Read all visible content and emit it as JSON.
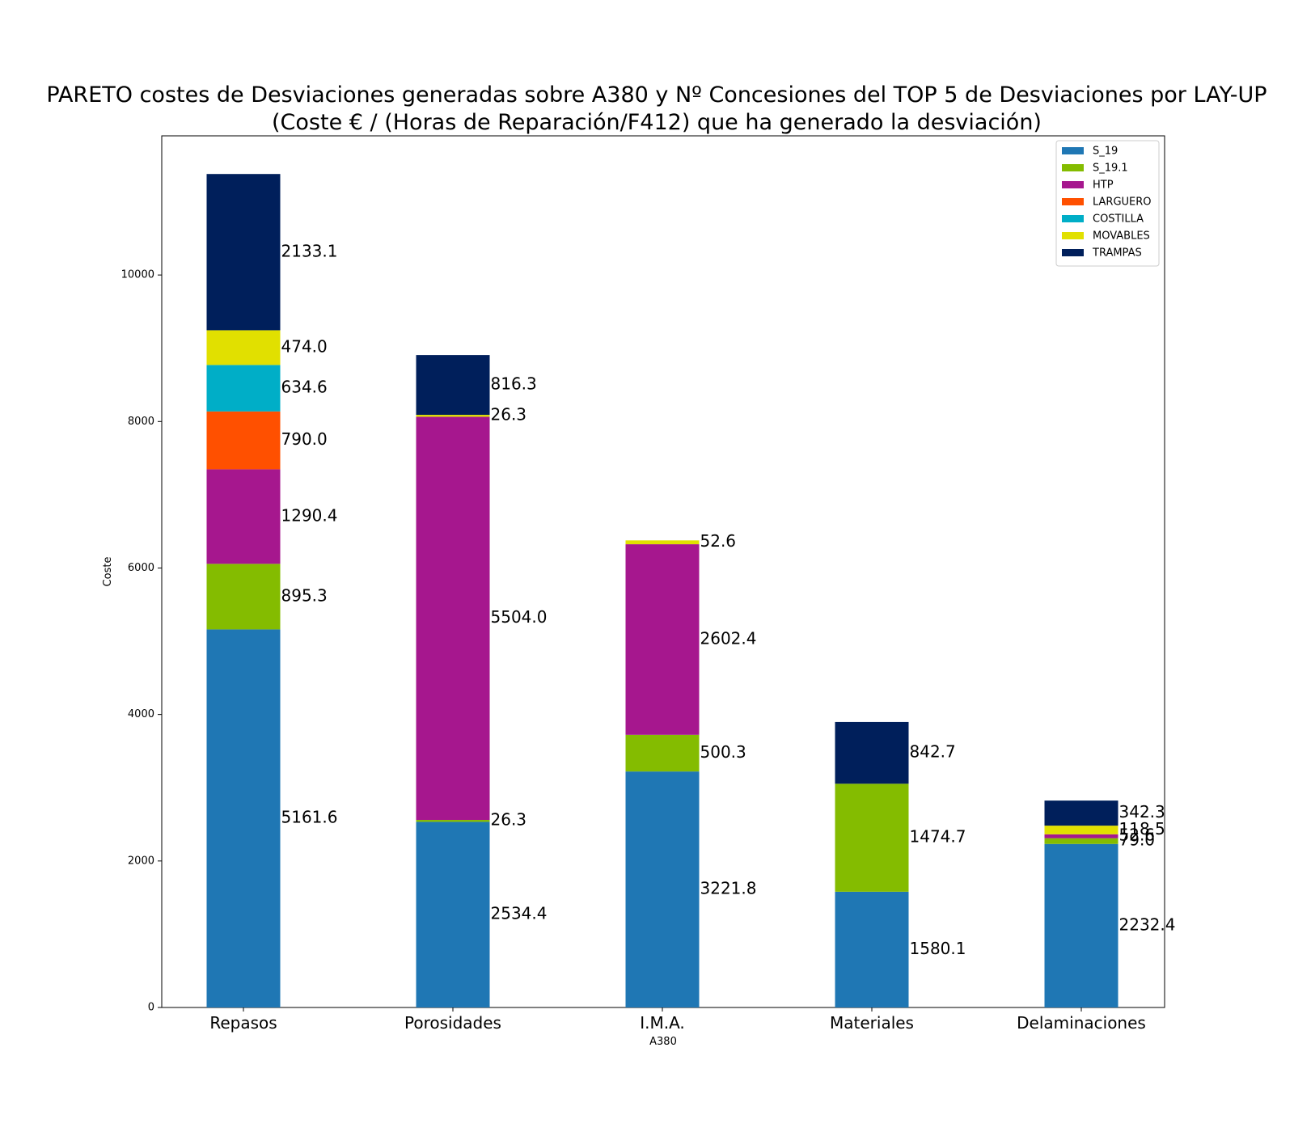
{
  "chart_data": {
    "type": "bar",
    "stacked": true,
    "title_lines": [
      "PARETO costes de Desviaciones  generadas sobre A380 y Nº Concesiones del TOP 5 de Desviaciones por LAY-UP",
      "(Coste € / (Horas de Reparación/F412) que ha generado la desviación)"
    ],
    "xlabel": "A380",
    "ylabel": "Coste",
    "ylim": [
      0,
      11900
    ],
    "yticks": [
      0,
      2000,
      4000,
      6000,
      8000,
      10000
    ],
    "categories": [
      "Repasos",
      "Porosidades",
      "I.M.A.",
      "Materiales",
      "Delaminaciones"
    ],
    "series": [
      {
        "name": "S_19",
        "color": "#1f77b4",
        "values": [
          5161.6,
          2534.4,
          3221.8,
          1580.1,
          2232.4
        ]
      },
      {
        "name": "S_19.1",
        "color": "#84bc00",
        "values": [
          895.3,
          26.3,
          500.3,
          1474.7,
          79.0
        ]
      },
      {
        "name": "HTP",
        "color": "#a6178e",
        "values": [
          1290.4,
          5504.0,
          2602.4,
          0,
          52.6
        ]
      },
      {
        "name": "LARGUERO",
        "color": "#ff5000",
        "values": [
          790.0,
          0,
          0,
          0,
          0
        ]
      },
      {
        "name": "COSTILLA",
        "color": "#00aec7",
        "values": [
          634.6,
          0,
          0,
          0,
          0
        ]
      },
      {
        "name": "MOVABLES",
        "color": "#e1e000",
        "values": [
          474.0,
          26.3,
          52.6,
          0,
          118.5
        ]
      },
      {
        "name": "TRAMPAS",
        "color": "#001f5b",
        "values": [
          2133.1,
          816.3,
          0,
          842.7,
          342.3
        ]
      }
    ],
    "value_labels": [
      [
        "5161.6",
        "895.3",
        "1290.4",
        "790.0",
        "634.6",
        "474.0",
        "2133.1"
      ],
      [
        "2534.4",
        "26.3",
        "5504.0",
        "",
        "",
        "26.3",
        "816.3"
      ],
      [
        "3221.8",
        "500.3",
        "2602.4",
        "",
        "",
        "52.6",
        ""
      ],
      [
        "1580.1",
        "1474.7",
        "",
        "",
        "",
        "",
        "842.7"
      ],
      [
        "2232.4",
        "79.0",
        "52.6",
        "",
        "",
        "118.5",
        "342.3"
      ]
    ],
    "legend": "top-right",
    "grid": false
  }
}
